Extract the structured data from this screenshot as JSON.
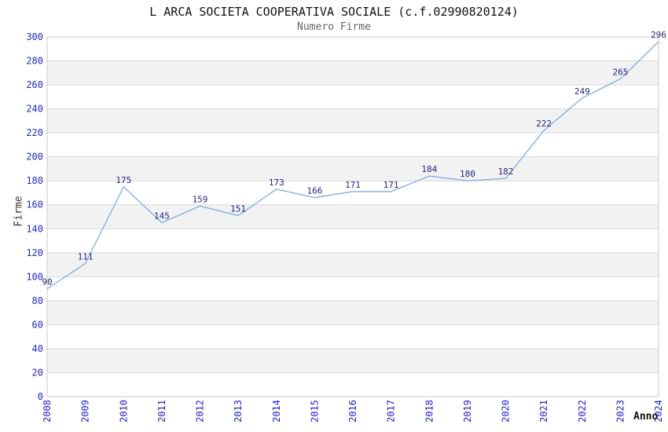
{
  "chart_data": {
    "type": "line",
    "title": "L ARCA SOCIETA COOPERATIVA SOCIALE (c.f.02990820124)",
    "subtitle": "Numero Firme",
    "xlabel": "Anno",
    "ylabel": "Firme",
    "categories": [
      "2008",
      "2009",
      "2010",
      "2011",
      "2012",
      "2013",
      "2014",
      "2015",
      "2016",
      "2017",
      "2018",
      "2019",
      "2020",
      "2021",
      "2022",
      "2023",
      "2024"
    ],
    "series": [
      {
        "name": "Numero Firme",
        "values": [
          90,
          111,
          175,
          145,
          159,
          151,
          173,
          166,
          171,
          171,
          184,
          180,
          182,
          222,
          249,
          265,
          296
        ]
      }
    ],
    "ylim": [
      0,
      300
    ],
    "ytick_step": 20,
    "grid": true,
    "background_bands": true,
    "legend_position": "none",
    "data_labels_visible": true
  },
  "colors": {
    "line": "#74a7dd",
    "tick_label": "#2424cc",
    "data_label": "#252582",
    "band": "#f2f2f2",
    "grid": "#d9d9d9",
    "border": "#c9c9c9",
    "title": "#111111",
    "subtitle": "#666666",
    "axis_title": "#333333"
  }
}
